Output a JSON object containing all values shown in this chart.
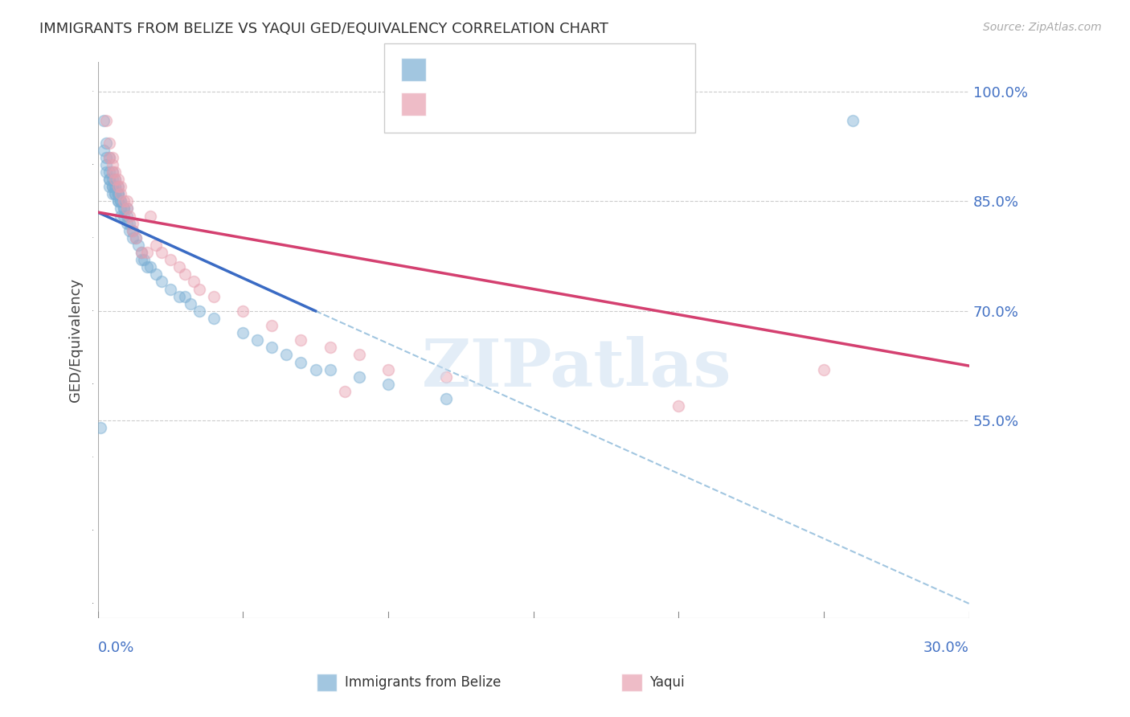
{
  "title": "IMMIGRANTS FROM BELIZE VS YAQUI GED/EQUIVALENCY CORRELATION CHART",
  "source": "Source: ZipAtlas.com",
  "ylabel": "GED/Equivalency",
  "ytick_labels": [
    "100.0%",
    "85.0%",
    "70.0%",
    "55.0%"
  ],
  "ytick_vals": [
    1.0,
    0.85,
    0.7,
    0.55
  ],
  "xlim": [
    0.0,
    0.3
  ],
  "ylim": [
    0.28,
    1.04
  ],
  "blue_color": "#7bafd4",
  "pink_color": "#e8a0b0",
  "blue_line_color": "#3a6bc4",
  "pink_line_color": "#d44070",
  "watermark": "ZIPatlas",
  "blue_scatter_x": [
    0.001,
    0.002,
    0.002,
    0.003,
    0.003,
    0.003,
    0.003,
    0.004,
    0.004,
    0.004,
    0.004,
    0.004,
    0.005,
    0.005,
    0.005,
    0.005,
    0.005,
    0.006,
    0.006,
    0.006,
    0.006,
    0.006,
    0.007,
    0.007,
    0.007,
    0.007,
    0.007,
    0.007,
    0.008,
    0.008,
    0.008,
    0.008,
    0.009,
    0.009,
    0.009,
    0.01,
    0.01,
    0.01,
    0.011,
    0.011,
    0.012,
    0.012,
    0.013,
    0.014,
    0.015,
    0.015,
    0.016,
    0.017,
    0.018,
    0.02,
    0.022,
    0.025,
    0.028,
    0.03,
    0.032,
    0.035,
    0.04,
    0.05,
    0.055,
    0.06,
    0.065,
    0.07,
    0.075,
    0.08,
    0.09,
    0.1,
    0.12,
    0.26
  ],
  "blue_scatter_y": [
    0.54,
    0.96,
    0.92,
    0.9,
    0.91,
    0.89,
    0.93,
    0.88,
    0.87,
    0.88,
    0.89,
    0.91,
    0.87,
    0.86,
    0.88,
    0.87,
    0.89,
    0.86,
    0.86,
    0.87,
    0.88,
    0.87,
    0.86,
    0.85,
    0.86,
    0.87,
    0.85,
    0.86,
    0.85,
    0.84,
    0.85,
    0.83,
    0.84,
    0.83,
    0.84,
    0.84,
    0.83,
    0.82,
    0.82,
    0.81,
    0.81,
    0.8,
    0.8,
    0.79,
    0.78,
    0.77,
    0.77,
    0.76,
    0.76,
    0.75,
    0.74,
    0.73,
    0.72,
    0.72,
    0.71,
    0.7,
    0.69,
    0.67,
    0.66,
    0.65,
    0.64,
    0.63,
    0.62,
    0.62,
    0.61,
    0.6,
    0.58,
    0.96
  ],
  "pink_scatter_x": [
    0.003,
    0.004,
    0.004,
    0.005,
    0.005,
    0.005,
    0.006,
    0.006,
    0.007,
    0.007,
    0.008,
    0.008,
    0.009,
    0.01,
    0.01,
    0.011,
    0.012,
    0.012,
    0.013,
    0.015,
    0.017,
    0.018,
    0.02,
    0.022,
    0.025,
    0.028,
    0.03,
    0.033,
    0.035,
    0.04,
    0.05,
    0.06,
    0.07,
    0.08,
    0.085,
    0.09,
    0.1,
    0.12,
    0.2,
    0.25
  ],
  "pink_scatter_y": [
    0.96,
    0.93,
    0.91,
    0.9,
    0.89,
    0.91,
    0.88,
    0.89,
    0.88,
    0.87,
    0.87,
    0.86,
    0.85,
    0.85,
    0.84,
    0.83,
    0.82,
    0.81,
    0.8,
    0.78,
    0.78,
    0.83,
    0.79,
    0.78,
    0.77,
    0.76,
    0.75,
    0.74,
    0.73,
    0.72,
    0.7,
    0.68,
    0.66,
    0.65,
    0.59,
    0.64,
    0.62,
    0.61,
    0.57,
    0.62
  ],
  "blue_line_x0": 0.0,
  "blue_line_x1": 0.075,
  "blue_line_y0": 0.835,
  "blue_line_y1": 0.7,
  "pink_line_x0": 0.0,
  "pink_line_x1": 0.3,
  "pink_line_y0": 0.835,
  "pink_line_y1": 0.625,
  "dashed_line_x0": 0.075,
  "dashed_line_x1": 0.3,
  "dashed_line_y0": 0.7,
  "dashed_line_y1": 0.3,
  "background_color": "#ffffff",
  "grid_color": "#cccccc",
  "tick_label_color": "#4472c4",
  "marker_size": 100,
  "marker_alpha": 0.45
}
